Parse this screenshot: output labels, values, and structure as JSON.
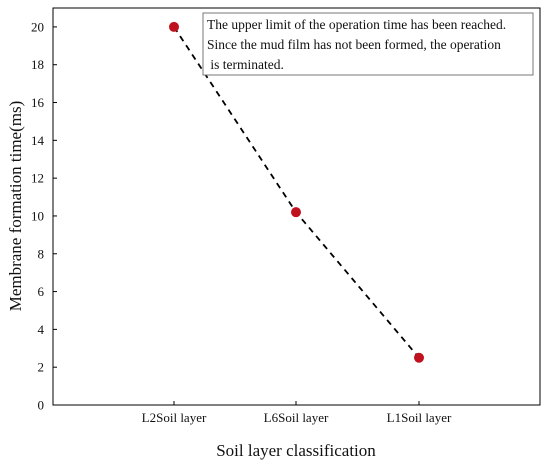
{
  "chart_data": {
    "type": "line",
    "title": "",
    "xlabel": "Soil layer classification",
    "ylabel": "Membrane formation time(ms)",
    "categories": [
      "L2Soil layer",
      "L6Soil layer",
      "L1Soil layer"
    ],
    "series": [
      {
        "values": [
          20,
          10.2,
          2.5
        ],
        "line_style": "dashed",
        "line_color": "#000000",
        "marker": "circle",
        "marker_color": "#c0111f"
      }
    ],
    "ylim": [
      0,
      21
    ],
    "yticks": [
      0,
      2,
      4,
      6,
      8,
      10,
      12,
      14,
      16,
      18,
      20
    ],
    "grid": false,
    "legend": "none",
    "annotation": {
      "lines": [
        "The upper limit of the operation time has been reached.",
        "Since the mud film has not been formed, the operation",
        " is terminated."
      ],
      "placement": "top-right"
    }
  }
}
